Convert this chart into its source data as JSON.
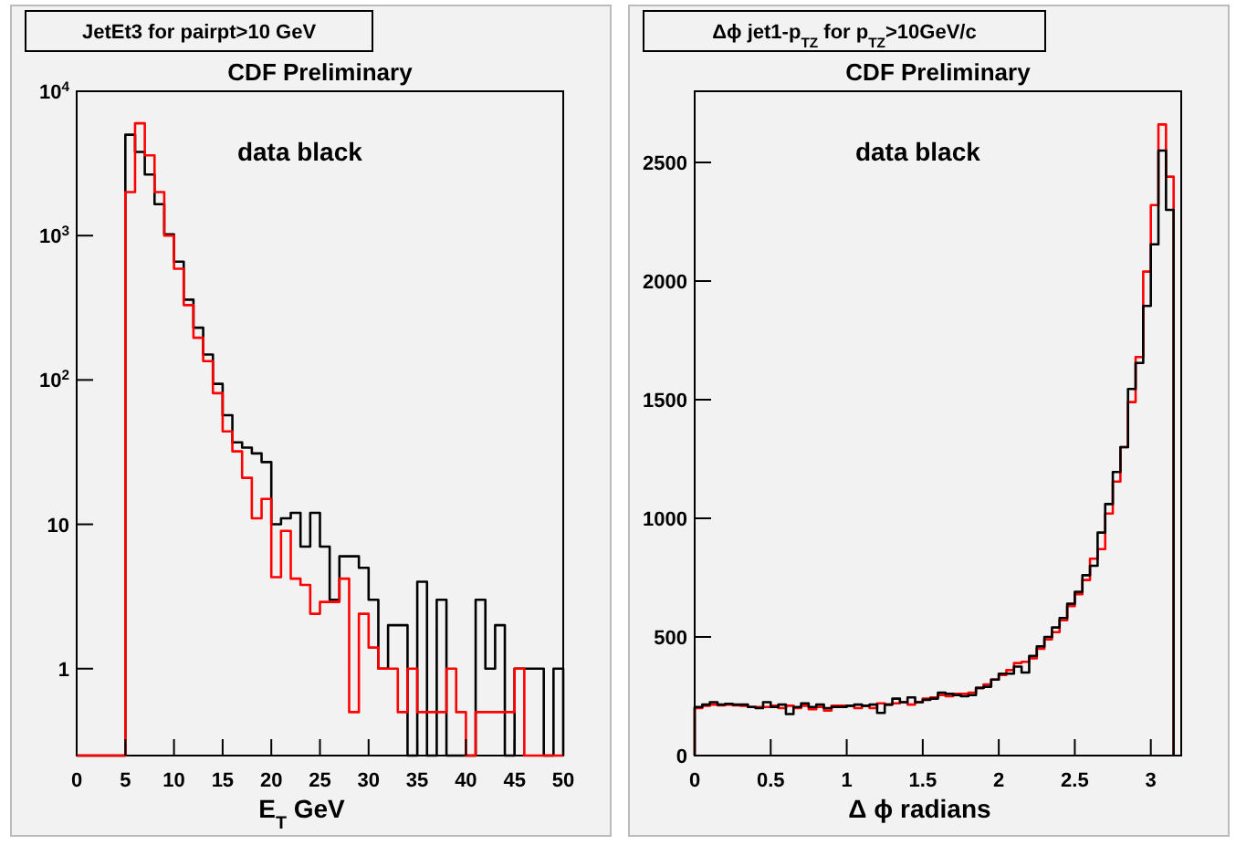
{
  "chart_data": [
    {
      "type": "histogram",
      "title": "JetEt3 for pairpt>10 GeV",
      "subtitle": "CDF Preliminary",
      "xlabel": "E$_{T}$ GeV",
      "log": "y",
      "xlim": [
        0,
        50
      ],
      "ylim": [
        0.25,
        10000
      ],
      "xticks": [
        0,
        5,
        10,
        15,
        20,
        25,
        30,
        35,
        40,
        45,
        50
      ],
      "yticks": [
        1,
        10,
        {
          "value": 100,
          "label": "10$^{2}$"
        },
        {
          "value": 1000,
          "label": "10$^{3}$"
        },
        {
          "value": 10000,
          "label": "10$^{4}$"
        }
      ],
      "bins": [
        0,
        1,
        2,
        3,
        4,
        5,
        6,
        7,
        8,
        9,
        10,
        11,
        12,
        13,
        14,
        15,
        16,
        17,
        18,
        19,
        20,
        21,
        22,
        23,
        24,
        25,
        26,
        27,
        28,
        29,
        30,
        31,
        32,
        33,
        34,
        35,
        36,
        37,
        38,
        39,
        40,
        41,
        42,
        43,
        44,
        45,
        46,
        47,
        48,
        49,
        50
      ],
      "series": [
        {
          "color": "#000000",
          "values": [
            null,
            null,
            null,
            null,
            null,
            5000,
            3800,
            2650,
            1650,
            1020,
            660,
            360,
            230,
            150,
            94,
            57,
            37,
            34,
            31,
            27,
            10,
            11,
            12,
            7,
            12,
            7,
            3,
            6,
            6,
            5,
            3,
            1,
            2,
            2,
            null,
            4,
            null,
            3,
            null,
            null,
            null,
            3,
            1,
            2,
            null,
            1,
            1,
            1,
            null,
            1
          ]
        },
        {
          "color": "#ff0000",
          "values": [
            null,
            null,
            null,
            null,
            null,
            2000,
            6000,
            3600,
            2000,
            1000,
            590,
            330,
            196,
            135,
            81,
            44,
            32,
            21,
            11,
            15,
            4.3,
            9,
            4.2,
            3.8,
            2.4,
            2.9,
            2.9,
            4.2,
            0.5,
            2.4,
            1.4,
            1,
            1,
            0.5,
            1,
            0.5,
            0.5,
            0.5,
            1,
            0.5,
            null,
            0.5,
            0.5,
            0.5,
            0.5,
            1,
            null,
            null,
            null,
            null
          ]
        }
      ],
      "annotations": [
        "data black"
      ]
    },
    {
      "type": "histogram",
      "title": "Δϕ jet1-p$_{TZ}$ for p$_{TZ}$>10GeV/c",
      "subtitle": "CDF Preliminary",
      "xlabel": "Δ ϕ radians",
      "xlim": [
        0,
        3.2
      ],
      "ylim": [
        0,
        2800
      ],
      "xticks": [
        0,
        0.5,
        1,
        1.5,
        2,
        2.5,
        3
      ],
      "yticks": [
        0,
        500,
        1000,
        1500,
        2000,
        2500
      ],
      "bins": [
        0,
        0.05,
        0.1,
        0.15,
        0.2,
        0.25,
        0.3,
        0.35,
        0.4,
        0.45,
        0.5,
        0.55,
        0.6,
        0.65,
        0.7,
        0.75,
        0.8,
        0.85,
        0.9,
        0.95,
        1,
        1.05,
        1.1,
        1.15,
        1.2,
        1.25,
        1.3,
        1.35,
        1.4,
        1.45,
        1.5,
        1.55,
        1.6,
        1.65,
        1.7,
        1.75,
        1.8,
        1.85,
        1.9,
        1.95,
        2,
        2.05,
        2.1,
        2.15,
        2.2,
        2.25,
        2.3,
        2.35,
        2.4,
        2.45,
        2.5,
        2.55,
        2.6,
        2.65,
        2.7,
        2.75,
        2.8,
        2.85,
        2.9,
        2.95,
        3,
        3.05,
        3.1,
        3.15
      ],
      "series": [
        {
          "color": "#ff0000",
          "values": [
            200,
            210,
            215,
            212,
            215,
            212,
            210,
            205,
            205,
            205,
            210,
            200,
            210,
            200,
            210,
            195,
            205,
            190,
            210,
            210,
            210,
            200,
            210,
            200,
            220,
            215,
            220,
            225,
            215,
            225,
            240,
            245,
            255,
            250,
            260,
            260,
            265,
            285,
            300,
            320,
            340,
            360,
            390,
            395,
            410,
            450,
            490,
            520,
            570,
            630,
            680,
            740,
            830,
            870,
            1020,
            1155,
            1300,
            1490,
            1680,
            2040,
            2320,
            2660,
            2440
          ]
        },
        {
          "color": "#000000",
          "values": [
            205,
            215,
            225,
            215,
            218,
            215,
            215,
            205,
            200,
            225,
            205,
            215,
            175,
            205,
            220,
            205,
            215,
            200,
            205,
            205,
            210,
            215,
            210,
            215,
            180,
            215,
            240,
            225,
            245,
            225,
            235,
            240,
            265,
            260,
            255,
            250,
            255,
            285,
            290,
            320,
            345,
            345,
            375,
            350,
            420,
            460,
            500,
            540,
            580,
            640,
            690,
            760,
            800,
            940,
            1060,
            1195,
            1300,
            1545,
            1655,
            1895,
            2155,
            2550,
            2300
          ]
        }
      ],
      "annotations": [
        "data black"
      ]
    }
  ]
}
